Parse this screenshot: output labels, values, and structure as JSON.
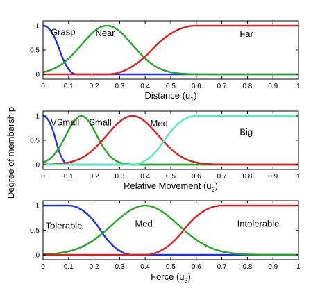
{
  "figure": {
    "ylabel": "Degree of membership"
  },
  "colors": {
    "blue": "#1a2ff0",
    "green": "#22a822",
    "red": "#e01e1e",
    "cyan": "#4ef0c0"
  },
  "chart_data": [
    {
      "type": "line",
      "xlabel_main": "Distance (u",
      "xlabel_sub": "1",
      "xlabel_close": ")",
      "xlim": [
        0,
        1
      ],
      "ylim": [
        0,
        1
      ],
      "xticks": [
        "0",
        "0.1",
        "0.2",
        "0.3",
        "0.4",
        "0.5",
        "0.6",
        "0.7",
        "0.8",
        "0.9",
        "1"
      ],
      "yticks": [
        "0",
        "0.5",
        "1"
      ],
      "series": [
        {
          "name": "Grasp",
          "color": "blue",
          "shape": "zmf",
          "params": [
            0.0,
            0.13
          ],
          "label_x": 0.03,
          "label_y": 0.88
        },
        {
          "name": "Near",
          "color": "green",
          "shape": "gauss",
          "params": [
            0.25,
            0.1
          ],
          "label_x": 0.205,
          "label_y": 0.86
        },
        {
          "name": "Far",
          "color": "red",
          "shape": "smf",
          "params": [
            0.25,
            0.6
          ],
          "label_x": 0.77,
          "label_y": 0.84
        }
      ]
    },
    {
      "type": "line",
      "xlabel_main": "Relative Movement (u",
      "xlabel_sub": "2",
      "xlabel_close": ")",
      "xlim": [
        0,
        1
      ],
      "ylim": [
        0,
        1
      ],
      "xticks": [
        "0",
        "0.1",
        "0.2",
        "0.3",
        "0.4",
        "0.5",
        "0.6",
        "0.7",
        "0.8",
        "0.9",
        "1"
      ],
      "yticks": [
        "0",
        "0.5",
        "1"
      ],
      "series": [
        {
          "name": "VSmall",
          "color": "blue",
          "shape": "zmf",
          "params": [
            0.0,
            0.1
          ],
          "label_x": 0.03,
          "label_y": 0.88
        },
        {
          "name": "Small",
          "color": "green",
          "shape": "gauss",
          "params": [
            0.15,
            0.06
          ],
          "label_x": 0.18,
          "label_y": 0.88
        },
        {
          "name": "Med",
          "color": "red",
          "shape": "gauss",
          "params": [
            0.35,
            0.1
          ],
          "label_x": 0.42,
          "label_y": 0.86
        },
        {
          "name": "Big",
          "color": "cyan",
          "shape": "smf",
          "params": [
            0.35,
            0.6
          ],
          "label_x": 0.77,
          "label_y": 0.68
        }
      ]
    },
    {
      "type": "line",
      "xlabel_main": "Force (u",
      "xlabel_sub": "3",
      "xlabel_close": ")",
      "xlim": [
        0,
        1
      ],
      "ylim": [
        0,
        1
      ],
      "xticks": [
        "0",
        "0.1",
        "0.2",
        "0.3",
        "0.4",
        "0.5",
        "0.6",
        "0.7",
        "0.8",
        "0.9",
        "1"
      ],
      "yticks": [
        "0",
        "0.5",
        "1"
      ],
      "series": [
        {
          "name": "Tolerable",
          "color": "blue",
          "shape": "zmf",
          "params": [
            0.1,
            0.35
          ],
          "label_x": 0.01,
          "label_y": 0.6
        },
        {
          "name": "Med",
          "color": "green",
          "shape": "gauss",
          "params": [
            0.4,
            0.13
          ],
          "label_x": 0.36,
          "label_y": 0.64
        },
        {
          "name": "Intolerable",
          "color": "red",
          "shape": "smf",
          "params": [
            0.4,
            0.7
          ],
          "label_x": 0.76,
          "label_y": 0.64
        }
      ]
    }
  ]
}
